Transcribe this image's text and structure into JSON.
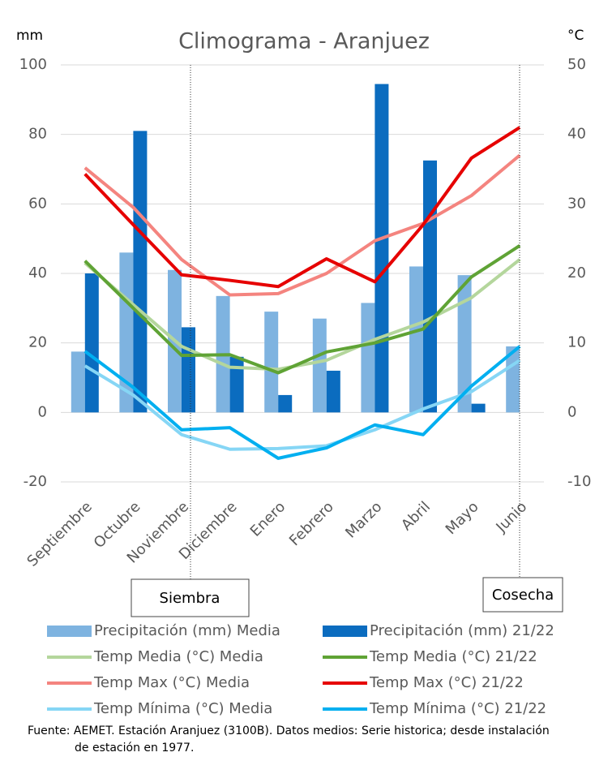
{
  "chart_data": {
    "type": "combo",
    "title": "Climograma - Aranjuez",
    "y_label": "mm",
    "y2_label": "°C",
    "categories": [
      "Septiembre",
      "Octubre",
      "Noviembre",
      "Diciembre",
      "Enero",
      "Febrero",
      "Marzo",
      "Abril",
      "Mayo",
      "Junio"
    ],
    "ylim": [
      -20,
      100
    ],
    "yticks": [
      -20,
      0,
      20,
      40,
      60,
      80,
      100
    ],
    "y2lim": [
      -10,
      50
    ],
    "y2ticks": [
      -10,
      0,
      10,
      20,
      30,
      40,
      50
    ],
    "series": [
      {
        "name": "Precipitación (mm) Media",
        "type": "bar",
        "color": "#7eb3e0",
        "values": [
          17.5,
          46,
          41,
          33.5,
          29,
          27,
          31.5,
          42,
          39.5,
          19
        ]
      },
      {
        "name": "Precipitación (mm) 21/22",
        "type": "bar",
        "color": "#0b6cbf",
        "values": [
          40,
          81,
          24.5,
          16,
          5,
          12,
          94.5,
          72.5,
          2.5,
          null
        ]
      },
      {
        "name": "Temp Media (°C) Media",
        "type": "line",
        "axis": "y2",
        "color": "#b4d69c",
        "values": [
          21.5,
          15.5,
          9.5,
          6.5,
          6.2,
          7.5,
          10.5,
          13,
          16.5,
          22
        ]
      },
      {
        "name": "Temp Media (°C) 21/22",
        "type": "line",
        "axis": "y2",
        "color": "#5fa335",
        "values": [
          21.8,
          15,
          8.2,
          8.3,
          5.7,
          8.7,
          10,
          12,
          19.5,
          24
        ]
      },
      {
        "name": "Temp Max (°C) Media",
        "type": "line",
        "axis": "y2",
        "color": "#f4847f",
        "values": [
          35.2,
          29.5,
          22,
          16.9,
          17.1,
          20,
          24.7,
          27.2,
          31.2,
          37
        ]
      },
      {
        "name": "Temp Max (°C) 21/22",
        "type": "line",
        "axis": "y2",
        "color": "#e60000",
        "values": [
          34.3,
          27,
          19.8,
          19,
          18.1,
          22.1,
          18.8,
          27,
          36.6,
          41
        ]
      },
      {
        "name": "Temp Mínima (°C) Media",
        "type": "line",
        "axis": "y2",
        "color": "#86d6f5",
        "values": [
          6.7,
          2.5,
          -3.2,
          -5.3,
          -5.2,
          -4.8,
          -2.5,
          0.5,
          3,
          7.5
        ]
      },
      {
        "name": "Temp Mínima (°C) 21/22",
        "type": "line",
        "axis": "y2",
        "color": "#00aff0",
        "values": [
          8.8,
          3.6,
          -2.5,
          -2.2,
          -6.6,
          -5.1,
          -1.8,
          -3.2,
          3.8,
          9.5
        ]
      }
    ],
    "annotations": [
      "Siembra",
      "Cosecha"
    ],
    "source": [
      "Fuente: AEMET. Estación Aranjuez (3100B). Datos medios: Serie historica; desde instalación",
      "de estación en 1977."
    ]
  }
}
